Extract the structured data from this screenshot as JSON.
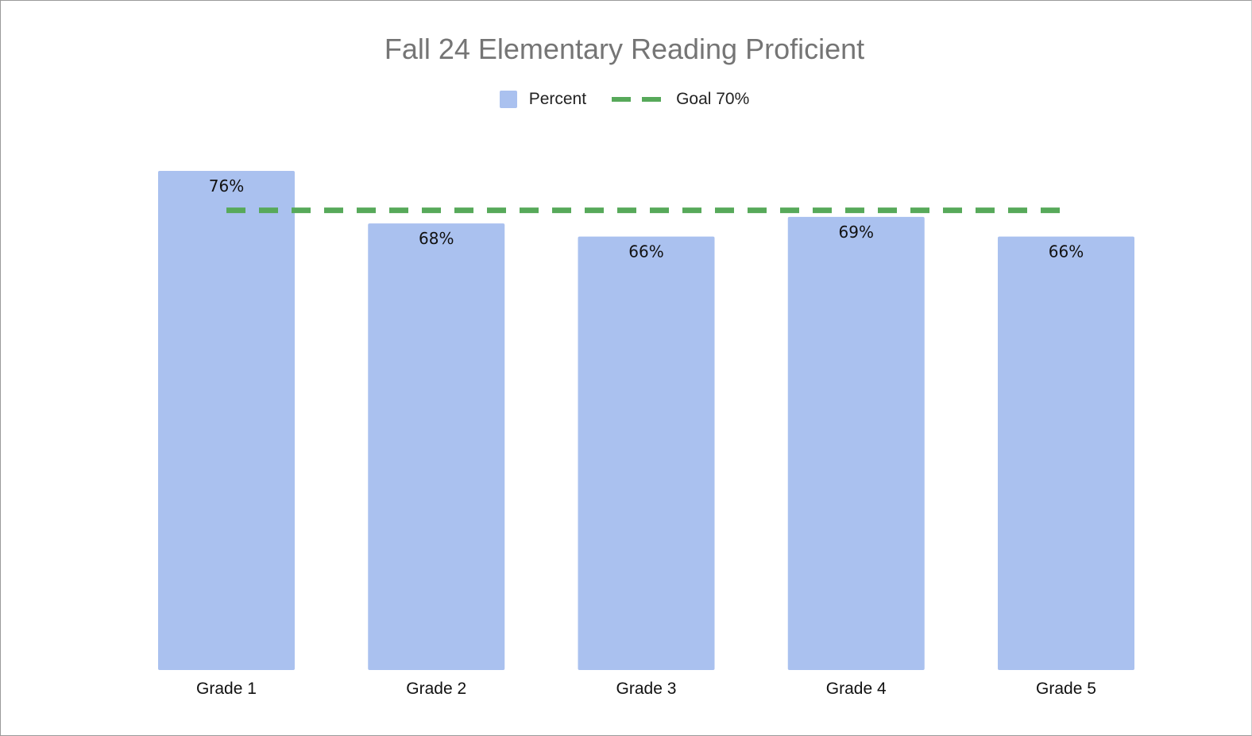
{
  "chart_data": {
    "type": "bar",
    "title": "Fall 24 Elementary Reading Proficient",
    "categories": [
      "Grade 1",
      "Grade 2",
      "Grade 3",
      "Grade 4",
      "Grade 5"
    ],
    "series": [
      {
        "name": "Percent",
        "values": [
          76,
          68,
          66,
          69,
          66
        ],
        "labels": [
          "76%",
          "68%",
          "66%",
          "69%",
          "66%"
        ],
        "color": "#aac1ef"
      },
      {
        "name": "Goal 70%",
        "type": "line",
        "style": "dashed",
        "values": [
          70,
          70,
          70,
          70,
          70
        ],
        "color": "#57a95a"
      }
    ],
    "xlabel": "",
    "ylabel": "",
    "ylim": [
      0,
      76
    ],
    "grid": false,
    "legend": "top-center"
  }
}
